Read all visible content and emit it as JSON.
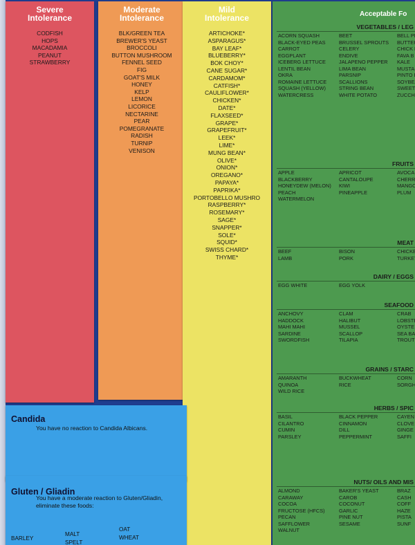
{
  "severe": {
    "title": [
      "Severe",
      "Intolerance"
    ],
    "items": [
      "CODFISH",
      "HOPS",
      "MACADAMIA",
      "PEANUT",
      "STRAWBERRY"
    ]
  },
  "moderate": {
    "title": [
      "Moderate",
      "Intolerance"
    ],
    "items": [
      "BLK/GREEN TEA",
      "BREWER'S YEAST",
      "BROCCOLI",
      "BUTTON MUSHROOM",
      "FENNEL SEED",
      "FIG",
      "GOAT'S MILK",
      "HONEY",
      "KELP",
      "LEMON",
      "LICORICE",
      "NECTARINE",
      "PEAR",
      "POMEGRANATE",
      "RADISH",
      "TURNIP",
      "VENISON"
    ]
  },
  "mild": {
    "title": [
      "Mild",
      "Intolerance"
    ],
    "items": [
      "ARTICHOKE*",
      "ASPARAGUS*",
      "BAY LEAF*",
      "BLUEBERRY*",
      "BOK CHOY*",
      "CANE SUGAR*",
      "CARDAMOM*",
      "CATFISH*",
      "CAULIFLOWER*",
      "CHICKEN*",
      "DATE*",
      "FLAXSEED*",
      "GRAPE*",
      "GRAPEFRUIT*",
      "LEEK*",
      "LIME*",
      "MUNG BEAN*",
      "OLIVE*",
      "ONION*",
      "OREGANO*",
      "PAPAYA*",
      "PAPRIKA*",
      "PORTOBELLO MUSHRO",
      "RASPBERRY*",
      "ROSEMARY*",
      "SAGE*",
      "SNAPPER*",
      "SOLE*",
      "SQUID*",
      "SWISS CHARD*",
      "THYME*"
    ]
  },
  "acceptable": {
    "title": "Acceptable Fo",
    "sections": [
      {
        "title": "VEGETABLES / LEG",
        "columns": [
          [
            "ACORN SQUASH",
            "BLACK-EYED PEAS",
            "CARROT",
            "EGGPLANT",
            "ICEBERG LETTUCE",
            "LENTIL BEAN",
            "OKRA",
            "ROMAINE LETTUCE",
            "SQUASH (Yellow)",
            "WATERCRESS"
          ],
          [
            "BEET",
            "BRUSSEL SPROUTS",
            "CELERY",
            "ENDIVE",
            "JALAPENO PEPPER",
            "LIMA BEAN",
            "PARSNIP",
            "SCALLIONS",
            "STRING BEAN",
            "WHITE POTATO"
          ],
          [
            "BELL PE",
            "BUTTER",
            "CHICK F",
            "FAVA B",
            "KALE",
            "MUSTAF",
            "PINTO B",
            "SOYBEA",
            "SWEET",
            "ZUCCHI"
          ]
        ]
      },
      {
        "title": "FRUITS",
        "columns": [
          [
            "APPLE",
            "BLACKBERRY",
            "HONEYDEW (MELON)",
            "PEACH",
            "WATERMELON"
          ],
          [
            "APRICOT",
            "CANTALOUPE",
            "KIWI",
            "PINEAPPLE"
          ],
          [
            "AVOCAD",
            "CHERRY",
            "MANGO",
            "PLUM"
          ]
        ]
      },
      {
        "title": "MEAT",
        "columns": [
          [
            "BEEF",
            "LAMB"
          ],
          [
            "BISON",
            "PORK"
          ],
          [
            "CHICKE",
            "TURKEY"
          ]
        ]
      },
      {
        "title": "DAIRY / EGGS",
        "columns": [
          [
            "EGG WHITE"
          ],
          [
            "EGG YOLK"
          ],
          []
        ]
      },
      {
        "title": "SEAFOOD",
        "columns": [
          [
            "ANCHOVY",
            "HADDOCK",
            "MAHI MAHI",
            "SARDINE",
            "SWORDFISH"
          ],
          [
            "CLAM",
            "HALIBUT",
            "MUSSEL",
            "SCALLOP",
            "TILAPIA"
          ],
          [
            "CRAB",
            "LOBSTE",
            "OYSTE",
            "SEA BA",
            "TROUT"
          ]
        ]
      },
      {
        "title": "GRAINS / STARC",
        "columns": [
          [
            "AMARANTH",
            "QUINOA",
            "WILD RICE"
          ],
          [
            "BUCKWHEAT",
            "RICE"
          ],
          [
            "CORN",
            "SORGH"
          ]
        ]
      },
      {
        "title": "HERBS / SPIC",
        "columns": [
          [
            "BASIL",
            "CILANTRO",
            "CUMIN",
            "PARSLEY"
          ],
          [
            "BLACK PEPPER",
            "CINNAMON",
            "DILL",
            "PEPPERMINT"
          ],
          [
            "CAYEN",
            "CLOVE",
            "GINGE",
            "SAFFI"
          ]
        ]
      },
      {
        "title": "NUTS/ OILS AND MIS",
        "columns": [
          [
            "ALMOND",
            "CARAWAY",
            "COCOA",
            "FRUCTOSE (HFCS)",
            "PECAN",
            "SAFFLOWER",
            "WALNUT"
          ],
          [
            "BAKER'S YEAST",
            "CAROB",
            "COCONUT",
            "GARLIC",
            "PINE NUT",
            "SESAME"
          ],
          [
            "BRAZ",
            "CASH",
            "COFF",
            "HAZE",
            "PISTA",
            "SUNF"
          ]
        ]
      }
    ]
  },
  "candida": {
    "title": "Candida",
    "text": "You have no reaction to Candida Albicans."
  },
  "gluten": {
    "title": "Gluten / Gliadin",
    "text_line1": "You have a moderate reaction to Gluten/Gliadin,",
    "text_line2": "eliminate these foods:",
    "foods": [
      "BARLEY",
      "MALT",
      "OAT",
      "WHEAT",
      "SPELT"
    ]
  }
}
